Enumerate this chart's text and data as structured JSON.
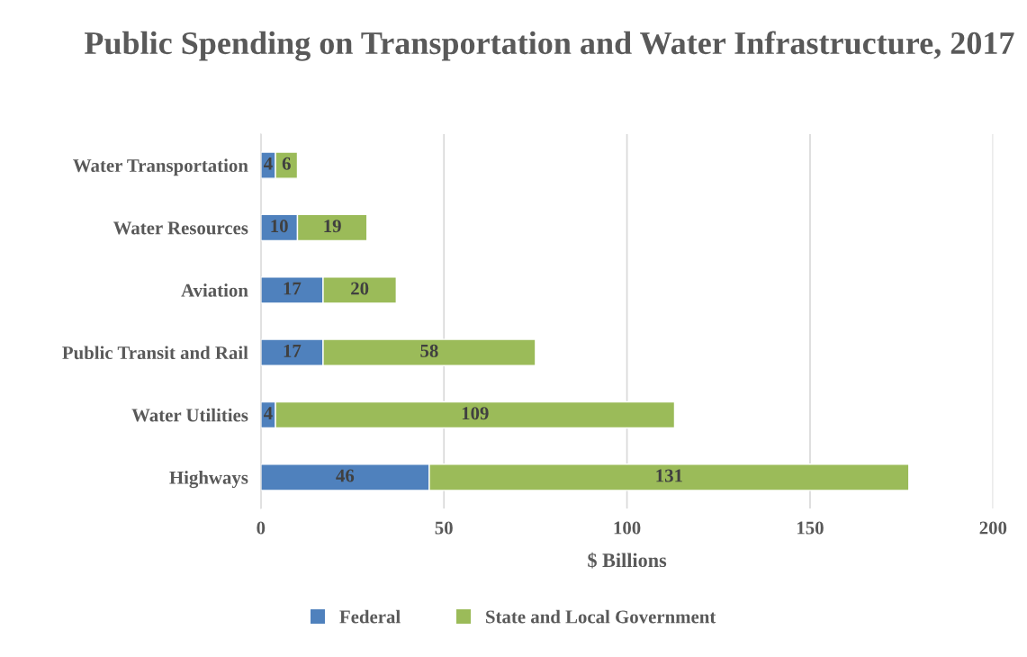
{
  "chart_data": {
    "type": "bar",
    "orientation": "horizontal",
    "stacked": true,
    "title": "Public Spending on Transportation and Water Infrastructure, 2017",
    "xlabel": "$ Billions",
    "categories": [
      "Water Transportation",
      "Water Resources",
      "Aviation",
      "Public Transit and Rail",
      "Water Utilities",
      "Highways"
    ],
    "series": [
      {
        "name": "Federal",
        "color": "#4f81bd",
        "values": [
          4,
          10,
          17,
          17,
          4,
          46
        ]
      },
      {
        "name": "State and Local Government",
        "color": "#9bbb59",
        "values": [
          6,
          19,
          20,
          58,
          109,
          131
        ]
      }
    ],
    "xlim": [
      0,
      200
    ],
    "xticks": [
      0,
      50,
      100,
      150,
      200
    ],
    "grid": "x",
    "legend": "bottom",
    "data_labels": true
  }
}
